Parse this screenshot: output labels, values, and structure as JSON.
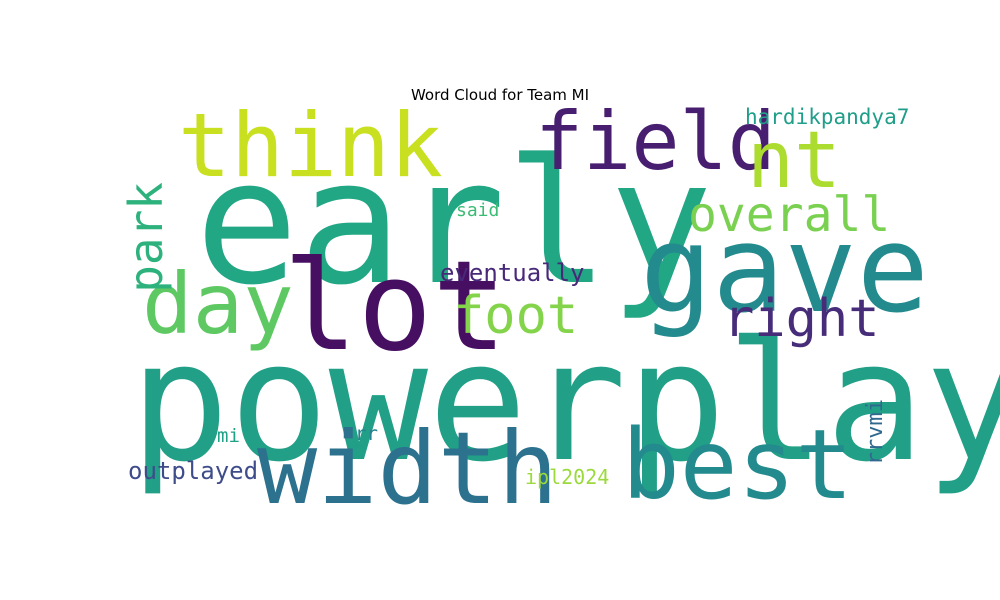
{
  "title": "Word Cloud for Team MI",
  "chart_data": {
    "type": "wordcloud",
    "title": "Word Cloud for Team MI",
    "words": [
      {
        "text": "powerplay",
        "color": "#21a087"
      },
      {
        "text": "early",
        "color": "#22a785"
      },
      {
        "text": "lot",
        "color": "#470f62"
      },
      {
        "text": "gave",
        "color": "#238a8d"
      },
      {
        "text": "width",
        "color": "#2c728e"
      },
      {
        "text": "think",
        "color": "#c8e020"
      },
      {
        "text": "best",
        "color": "#238a8d"
      },
      {
        "text": "field",
        "color": "#481f70"
      },
      {
        "text": "day",
        "color": "#5ec962"
      },
      {
        "text": "nt",
        "color": "#addc30"
      },
      {
        "text": "foot",
        "color": "#84d44b"
      },
      {
        "text": "right",
        "color": "#472c7a"
      },
      {
        "text": "park",
        "color": "#2db27d"
      },
      {
        "text": "overall",
        "color": "#7ad151"
      },
      {
        "text": "eventually",
        "color": "#482878"
      },
      {
        "text": "outplayed",
        "color": "#3e4c8a"
      },
      {
        "text": "hardikpandya7",
        "color": "#1f9e89"
      },
      {
        "text": "rrvmi",
        "color": "#31688e"
      },
      {
        "text": "ipl2024",
        "color": "#9bd93c"
      },
      {
        "text": "said",
        "color": "#3bbb75"
      },
      {
        "text": "mi",
        "color": "#1fa187"
      },
      {
        "text": "rr",
        "color": "#26828e"
      }
    ]
  }
}
